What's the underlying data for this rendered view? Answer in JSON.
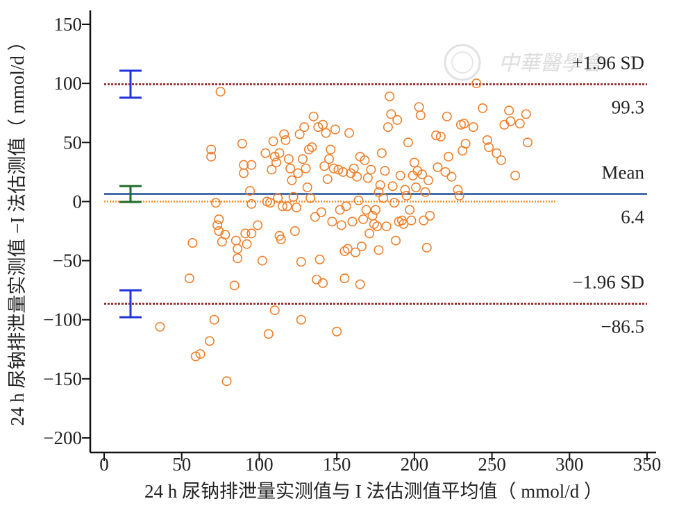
{
  "chart_data": {
    "type": "scatter",
    "xlabel": "24 h 尿钠排泄量实测值与 I 法估测值平均值（ mmol/d ）",
    "ylabel": "24 h 尿钠排泄量实测值 −I 法估测值（ mmol/d ）",
    "xlim": [
      0,
      350
    ],
    "ylim": [
      -200,
      160
    ],
    "x_ticks": [
      "0",
      "50",
      "100",
      "150",
      "200",
      "250",
      "300",
      "350"
    ],
    "y_ticks": [
      "150",
      "100",
      "50",
      "0",
      "−50",
      "−100",
      "−150",
      "−200"
    ],
    "x_tick_values": [
      0,
      50,
      100,
      150,
      200,
      250,
      300,
      350
    ],
    "y_tick_values": [
      150,
      100,
      50,
      0,
      -50,
      -100,
      -150,
      -200
    ],
    "grid": false,
    "reference_lines": [
      {
        "name": "+1.96 SD",
        "value": 99.3,
        "label": "+1.96 SD",
        "value_label": "99.3",
        "color": "#8b1a1a",
        "style": "dashed"
      },
      {
        "name": "Mean",
        "value": 6.4,
        "label": "Mean",
        "value_label": "6.4",
        "color": "#1f4e9a",
        "style": "solid"
      },
      {
        "name": "−1.96 SD",
        "value": -86.5,
        "label": "−1.96 SD",
        "value_label": "−86.5",
        "color": "#8b1a1a",
        "style": "dashed"
      }
    ],
    "zero_line": {
      "value": 0,
      "x_range": [
        0,
        292
      ],
      "color": "#f28c28",
      "style": "dotted"
    },
    "confidence_intervals": [
      {
        "name": "+1.96 SD CI",
        "x": 17,
        "low": 87.9,
        "high": 110.7,
        "color": "#2233dd"
      },
      {
        "name": "Mean CI",
        "x": 17,
        "low": -0.3,
        "high": 13.1,
        "color": "#1f6b2a"
      },
      {
        "name": "−1.96 SD CI",
        "x": 17,
        "low": -97.9,
        "high": -75.1,
        "color": "#2233dd"
      }
    ],
    "points": [
      [
        36,
        -106
      ],
      [
        55,
        -65
      ],
      [
        57,
        -35
      ],
      [
        59,
        -131
      ],
      [
        62,
        -129
      ],
      [
        68,
        -118
      ],
      [
        69,
        44
      ],
      [
        69,
        38
      ],
      [
        71,
        -100
      ],
      [
        72,
        -1
      ],
      [
        73,
        -20
      ],
      [
        74,
        -15
      ],
      [
        74,
        -25
      ],
      [
        75,
        93
      ],
      [
        76,
        -34
      ],
      [
        78,
        -28
      ],
      [
        79,
        -152
      ],
      [
        84,
        -71
      ],
      [
        85,
        -33
      ],
      [
        86,
        -40
      ],
      [
        86,
        -48
      ],
      [
        89,
        49
      ],
      [
        90,
        31
      ],
      [
        90,
        24
      ],
      [
        91,
        -27
      ],
      [
        92,
        -36
      ],
      [
        94,
        9
      ],
      [
        95,
        -2
      ],
      [
        95,
        31
      ],
      [
        95,
        -27
      ],
      [
        99,
        -20
      ],
      [
        102,
        -50
      ],
      [
        104,
        41
      ],
      [
        105,
        0
      ],
      [
        106,
        -112
      ],
      [
        107,
        -1
      ],
      [
        108,
        27
      ],
      [
        109,
        51
      ],
      [
        110,
        -92
      ],
      [
        110,
        38
      ],
      [
        111,
        33
      ],
      [
        112,
        3
      ],
      [
        113,
        41
      ],
      [
        113,
        -29
      ],
      [
        114,
        -32
      ],
      [
        115,
        -4
      ],
      [
        116,
        57
      ],
      [
        117,
        52
      ],
      [
        118,
        -4
      ],
      [
        119,
        36
      ],
      [
        120,
        28
      ],
      [
        121,
        18
      ],
      [
        122,
        4
      ],
      [
        123,
        -25
      ],
      [
        124,
        -5
      ],
      [
        125,
        24
      ],
      [
        126,
        57
      ],
      [
        127,
        -51
      ],
      [
        127,
        -100
      ],
      [
        128,
        36
      ],
      [
        129,
        63
      ],
      [
        130,
        28
      ],
      [
        131,
        12
      ],
      [
        132,
        44
      ],
      [
        133,
        3
      ],
      [
        134,
        46
      ],
      [
        135,
        72
      ],
      [
        136,
        -13
      ],
      [
        137,
        -66
      ],
      [
        138,
        63
      ],
      [
        139,
        -49
      ],
      [
        140,
        -9
      ],
      [
        141,
        -69
      ],
      [
        141,
        65
      ],
      [
        142,
        30
      ],
      [
        143,
        58
      ],
      [
        144,
        19
      ],
      [
        145,
        36
      ],
      [
        146,
        44
      ],
      [
        147,
        -17
      ],
      [
        148,
        28
      ],
      [
        149,
        61
      ],
      [
        150,
        -110
      ],
      [
        151,
        27
      ],
      [
        152,
        -7
      ],
      [
        153,
        -20
      ],
      [
        154,
        25
      ],
      [
        155,
        -65
      ],
      [
        155,
        -42
      ],
      [
        156,
        -4
      ],
      [
        157,
        -40
      ],
      [
        158,
        58
      ],
      [
        159,
        24
      ],
      [
        160,
        -17
      ],
      [
        161,
        28
      ],
      [
        162,
        -43
      ],
      [
        163,
        21
      ],
      [
        164,
        1
      ],
      [
        165,
        -70
      ],
      [
        165,
        38
      ],
      [
        166,
        -38
      ],
      [
        167,
        -15
      ],
      [
        168,
        35
      ],
      [
        169,
        -7
      ],
      [
        170,
        20
      ],
      [
        171,
        -27
      ],
      [
        172,
        27
      ],
      [
        173,
        -12
      ],
      [
        174,
        -19
      ],
      [
        175,
        -7
      ],
      [
        176,
        -21
      ],
      [
        177,
        -41
      ],
      [
        177,
        8
      ],
      [
        178,
        14
      ],
      [
        179,
        41
      ],
      [
        180,
        3
      ],
      [
        181,
        26
      ],
      [
        182,
        -21
      ],
      [
        183,
        63
      ],
      [
        184,
        89
      ],
      [
        185,
        74
      ],
      [
        186,
        13
      ],
      [
        187,
        -1
      ],
      [
        188,
        -33
      ],
      [
        189,
        69
      ],
      [
        190,
        -17
      ],
      [
        191,
        22
      ],
      [
        192,
        -16
      ],
      [
        193,
        -19
      ],
      [
        194,
        10
      ],
      [
        195,
        5
      ],
      [
        196,
        50
      ],
      [
        197,
        -7
      ],
      [
        198,
        -16
      ],
      [
        199,
        22
      ],
      [
        200,
        33
      ],
      [
        201,
        12
      ],
      [
        202,
        26
      ],
      [
        203,
        80
      ],
      [
        204,
        73
      ],
      [
        205,
        23
      ],
      [
        206,
        -16
      ],
      [
        207,
        8
      ],
      [
        208,
        -39
      ],
      [
        209,
        18
      ],
      [
        210,
        -12
      ],
      [
        214,
        56
      ],
      [
        215,
        29
      ],
      [
        217,
        55
      ],
      [
        220,
        25
      ],
      [
        221,
        72
      ],
      [
        222,
        38
      ],
      [
        224,
        21
      ],
      [
        228,
        10
      ],
      [
        229,
        5
      ],
      [
        230,
        65
      ],
      [
        231,
        43
      ],
      [
        232,
        66
      ],
      [
        233,
        49
      ],
      [
        238,
        63
      ],
      [
        240,
        100
      ],
      [
        244,
        79
      ],
      [
        247,
        52
      ],
      [
        248,
        46
      ],
      [
        253,
        41
      ],
      [
        256,
        35
      ],
      [
        258,
        65
      ],
      [
        261,
        77
      ],
      [
        262,
        68
      ],
      [
        265,
        22
      ],
      [
        268,
        66
      ],
      [
        272,
        74
      ],
      [
        273,
        50
      ]
    ]
  },
  "watermark": {
    "text": "中華醫學會",
    "color": "#d0d0d0"
  }
}
